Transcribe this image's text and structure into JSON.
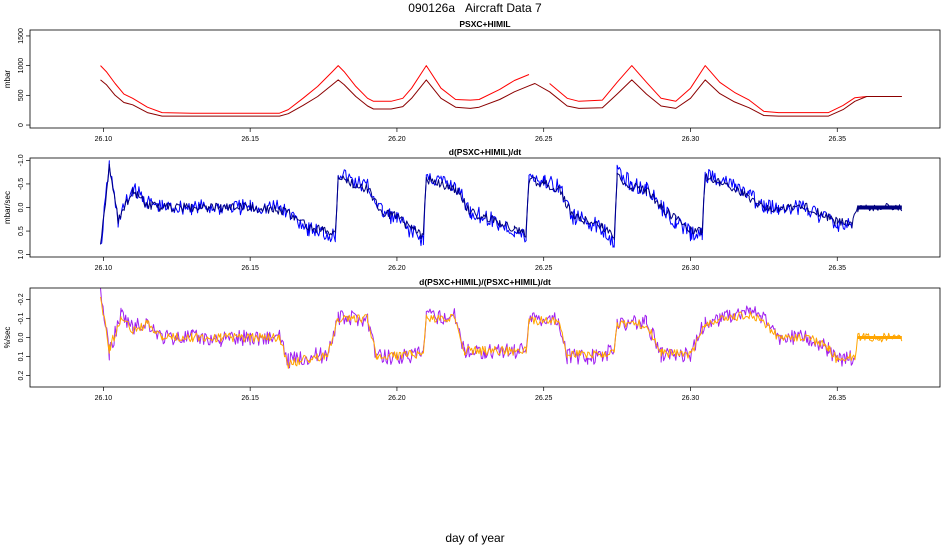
{
  "figure": {
    "title_id": "090126a",
    "title_text": "Aircraft Data 7",
    "xlabel": "day of year"
  },
  "colors": {
    "pressure_a": "#ff0000",
    "pressure_b": "#8b0000",
    "rate_a": "#0000ff",
    "rate_b": "#000080",
    "norm_a": "#a020f0",
    "norm_b": "#ffa500"
  },
  "chart_data": [
    {
      "type": "line",
      "title": "PSXC+HIMIL",
      "ylabel": "mbar",
      "xlim": [
        26.075,
        26.385
      ],
      "ylim": [
        -50,
        1600
      ],
      "y_reversed": false,
      "x_ticks": [
        {
          "v": 26.1,
          "label": "26.10"
        },
        {
          "v": 26.15,
          "label": "26.15"
        },
        {
          "v": 26.2,
          "label": "26.20"
        },
        {
          "v": 26.25,
          "label": "26.25"
        },
        {
          "v": 26.3,
          "label": "26.30"
        },
        {
          "v": 26.35,
          "label": "26.35"
        }
      ],
      "y_ticks": [
        {
          "v": 0,
          "label": "0"
        },
        {
          "v": 500,
          "label": "500"
        },
        {
          "v": 1000,
          "label": "1000"
        },
        {
          "v": 1500,
          "label": "1500"
        }
      ],
      "series": [
        {
          "name": "PSXC+HIMIL (upper)",
          "color": "#ff0000",
          "x": [
            26.099,
            26.101,
            26.104,
            26.107,
            26.11,
            26.115,
            26.12,
            26.13,
            26.14,
            26.15,
            26.16,
            26.163,
            26.168,
            26.173,
            26.178,
            26.18,
            26.182,
            26.186,
            26.19,
            26.192,
            26.198,
            26.202,
            26.205,
            26.21,
            26.215,
            26.22,
            26.225,
            26.228,
            26.235,
            26.24,
            26.245,
            26.247,
            26.252,
            26.258,
            26.262,
            26.27,
            26.275,
            26.28,
            26.285,
            26.29,
            26.295,
            26.3,
            26.305,
            26.31,
            26.315,
            26.32,
            26.325,
            26.33,
            26.34,
            26.347,
            26.352,
            26.356,
            26.36,
            26.372
          ],
          "y": [
            1000,
            900,
            700,
            520,
            450,
            300,
            210,
            200,
            200,
            200,
            200,
            260,
            450,
            650,
            900,
            1000,
            900,
            650,
            450,
            400,
            400,
            450,
            620,
            1000,
            620,
            430,
            420,
            430,
            600,
            750,
            850,
            null,
            700,
            450,
            400,
            420,
            720,
            1000,
            720,
            450,
            400,
            620,
            1000,
            720,
            550,
            420,
            230,
            210,
            210,
            210,
            330,
            460,
            480,
            480
          ]
        },
        {
          "name": "PSXC+HIMIL (lower)",
          "color": "#8b0000",
          "x": [
            26.099,
            26.101,
            26.104,
            26.107,
            26.11,
            26.115,
            26.12,
            26.13,
            26.14,
            26.15,
            26.16,
            26.163,
            26.168,
            26.173,
            26.178,
            26.18,
            26.182,
            26.186,
            26.19,
            26.192,
            26.198,
            26.202,
            26.205,
            26.21,
            26.215,
            26.22,
            26.225,
            26.228,
            26.235,
            26.24,
            26.245,
            26.247,
            26.252,
            26.258,
            26.262,
            26.27,
            26.275,
            26.28,
            26.285,
            26.29,
            26.295,
            26.3,
            26.305,
            26.31,
            26.315,
            26.32,
            26.325,
            26.33,
            26.34,
            26.347,
            26.352,
            26.356,
            26.36,
            26.372
          ],
          "y": [
            760,
            680,
            500,
            380,
            340,
            210,
            150,
            150,
            150,
            150,
            150,
            190,
            330,
            480,
            680,
            760,
            680,
            480,
            320,
            270,
            270,
            310,
            450,
            760,
            450,
            300,
            280,
            300,
            430,
            560,
            660,
            700,
            560,
            320,
            280,
            290,
            520,
            760,
            520,
            320,
            280,
            450,
            760,
            530,
            390,
            290,
            160,
            150,
            150,
            150,
            260,
            400,
            480,
            480
          ]
        }
      ]
    },
    {
      "type": "line",
      "title": "d(PSXC+HIMIL)/dt",
      "ylabel": "mbar/sec",
      "xlim": [
        26.075,
        26.385
      ],
      "ylim": [
        -1.05,
        1.05
      ],
      "y_reversed": true,
      "x_ticks": [
        {
          "v": 26.1,
          "label": "26.10"
        },
        {
          "v": 26.15,
          "label": "26.15"
        },
        {
          "v": 26.2,
          "label": "26.20"
        },
        {
          "v": 26.25,
          "label": "26.25"
        },
        {
          "v": 26.3,
          "label": "26.30"
        },
        {
          "v": 26.35,
          "label": "26.35"
        }
      ],
      "y_ticks": [
        {
          "v": -1.0,
          "label": "-1.0"
        },
        {
          "v": -0.5,
          "label": "-0.5"
        },
        {
          "v": 0.0,
          "label": "0.0"
        },
        {
          "v": 0.5,
          "label": "0.5"
        },
        {
          "v": 1.0,
          "label": "1.0"
        }
      ],
      "series": [
        {
          "name": "d/dt (upper)",
          "color": "#0000ff",
          "x": [
            26.099,
            26.102,
            26.105,
            26.11,
            26.115,
            26.12,
            26.13,
            26.14,
            26.15,
            26.16,
            26.165,
            26.17,
            26.175,
            26.179,
            26.18,
            26.185,
            26.19,
            26.195,
            26.2,
            26.205,
            26.209,
            26.21,
            26.215,
            26.22,
            26.225,
            26.23,
            26.235,
            26.24,
            26.244,
            26.245,
            26.25,
            26.255,
            26.26,
            26.265,
            26.27,
            26.274,
            26.275,
            26.28,
            26.285,
            26.29,
            26.295,
            26.3,
            26.304,
            26.305,
            26.31,
            26.315,
            26.32,
            26.325,
            26.33,
            26.34,
            26.345,
            26.35,
            26.355
          ],
          "y": [
            0.9,
            -0.9,
            0.3,
            -0.4,
            -0.1,
            0.0,
            0.0,
            0.0,
            0.0,
            0.0,
            0.2,
            0.45,
            0.55,
            0.6,
            -0.75,
            -0.55,
            -0.45,
            0.1,
            0.25,
            0.5,
            0.7,
            -0.65,
            -0.55,
            -0.45,
            0.1,
            0.2,
            0.35,
            0.5,
            0.65,
            -0.7,
            -0.55,
            -0.45,
            0.2,
            0.3,
            0.45,
            0.7,
            -0.75,
            -0.5,
            -0.4,
            0.0,
            0.3,
            0.55,
            0.6,
            -0.7,
            -0.6,
            -0.45,
            -0.25,
            0.0,
            0.0,
            0.0,
            0.2,
            0.35,
            0.4
          ]
        },
        {
          "name": "d/dt (smoothed)",
          "color": "#000080",
          "x": [
            26.099,
            26.102,
            26.105,
            26.11,
            26.115,
            26.12,
            26.13,
            26.14,
            26.15,
            26.16,
            26.165,
            26.17,
            26.175,
            26.179,
            26.18,
            26.185,
            26.19,
            26.195,
            26.2,
            26.205,
            26.209,
            26.21,
            26.215,
            26.22,
            26.225,
            26.23,
            26.235,
            26.24,
            26.244,
            26.245,
            26.25,
            26.255,
            26.26,
            26.265,
            26.27,
            26.274,
            26.275,
            26.28,
            26.285,
            26.29,
            26.295,
            26.3,
            26.304,
            26.305,
            26.31,
            26.315,
            26.32,
            26.325,
            26.33,
            26.34,
            26.345,
            26.35,
            26.355,
            26.357,
            26.372
          ],
          "y": [
            0.8,
            -0.85,
            0.25,
            -0.35,
            -0.05,
            0.0,
            0.0,
            0.0,
            0.0,
            0.05,
            0.2,
            0.4,
            0.5,
            0.55,
            -0.65,
            -0.5,
            -0.4,
            0.1,
            0.2,
            0.45,
            0.6,
            -0.6,
            -0.5,
            -0.4,
            0.1,
            0.2,
            0.3,
            0.45,
            0.55,
            -0.6,
            -0.5,
            -0.4,
            0.2,
            0.3,
            0.4,
            0.6,
            -0.65,
            -0.45,
            -0.35,
            0.0,
            0.25,
            0.45,
            0.5,
            -0.65,
            -0.55,
            -0.4,
            -0.2,
            0.0,
            0.0,
            0.0,
            0.15,
            0.3,
            0.35,
            0.0,
            0.0
          ]
        }
      ]
    },
    {
      "type": "line",
      "title": "d(PSXC+HIMIL)/(PSXC+HIMIL)/dt",
      "ylabel": "%/sec",
      "xlim": [
        26.075,
        26.385
      ],
      "ylim": [
        -0.26,
        0.26
      ],
      "y_reversed": true,
      "x_ticks": [
        {
          "v": 26.1,
          "label": "26.10"
        },
        {
          "v": 26.15,
          "label": "26.15"
        },
        {
          "v": 26.2,
          "label": "26.20"
        },
        {
          "v": 26.25,
          "label": "26.25"
        },
        {
          "v": 26.3,
          "label": "26.30"
        },
        {
          "v": 26.35,
          "label": "26.35"
        }
      ],
      "y_ticks": [
        {
          "v": -0.2,
          "label": "-0.2"
        },
        {
          "v": -0.1,
          "label": "-0.1"
        },
        {
          "v": 0.0,
          "label": "0.0"
        },
        {
          "v": 0.1,
          "label": "0.1"
        },
        {
          "v": 0.2,
          "label": "0.2"
        }
      ],
      "series": [
        {
          "name": "normalized rate (raw)",
          "color": "#a020f0",
          "x": [
            26.099,
            26.102,
            26.106,
            26.11,
            26.115,
            26.12,
            26.13,
            26.14,
            26.15,
            26.16,
            26.163,
            26.17,
            26.176,
            26.18,
            26.19,
            26.193,
            26.2,
            26.205,
            26.209,
            26.21,
            26.22,
            26.223,
            26.23,
            26.24,
            26.244,
            26.245,
            26.255,
            26.258,
            26.265,
            26.27,
            26.274,
            26.275,
            26.285,
            26.29,
            26.3,
            26.305,
            26.31,
            26.315,
            26.32,
            26.324,
            26.33,
            26.34,
            26.347,
            26.35,
            26.356
          ],
          "y": [
            -0.25,
            0.08,
            -0.12,
            -0.05,
            -0.08,
            0.0,
            0.0,
            0.01,
            0.0,
            0.0,
            0.12,
            0.1,
            0.09,
            -0.1,
            -0.1,
            0.1,
            0.1,
            0.1,
            0.08,
            -0.11,
            -0.11,
            0.07,
            0.07,
            0.07,
            0.05,
            -0.1,
            -0.1,
            0.1,
            0.1,
            0.1,
            0.06,
            -0.08,
            -0.08,
            0.09,
            0.09,
            -0.08,
            -0.1,
            -0.12,
            -0.14,
            -0.11,
            0.0,
            0.0,
            0.06,
            0.12,
            0.1
          ]
        },
        {
          "name": "normalized rate (smoothed)",
          "color": "#ffa500",
          "x": [
            26.099,
            26.102,
            26.106,
            26.11,
            26.115,
            26.12,
            26.13,
            26.14,
            26.15,
            26.16,
            26.163,
            26.17,
            26.176,
            26.18,
            26.19,
            26.193,
            26.2,
            26.205,
            26.209,
            26.21,
            26.22,
            26.223,
            26.23,
            26.24,
            26.244,
            26.245,
            26.255,
            26.258,
            26.265,
            26.27,
            26.274,
            26.275,
            26.285,
            26.29,
            26.3,
            26.305,
            26.31,
            26.315,
            26.32,
            26.324,
            26.33,
            26.34,
            26.347,
            26.35,
            26.356,
            26.357,
            26.372
          ],
          "y": [
            -0.22,
            0.06,
            -0.1,
            -0.04,
            -0.07,
            0.0,
            0.0,
            0.0,
            0.0,
            0.0,
            0.14,
            0.11,
            0.1,
            -0.1,
            -0.1,
            0.09,
            0.1,
            0.09,
            0.08,
            -0.1,
            -0.1,
            0.07,
            0.07,
            0.07,
            0.06,
            -0.09,
            -0.09,
            0.09,
            0.09,
            0.09,
            0.06,
            -0.07,
            -0.07,
            0.08,
            0.09,
            -0.07,
            -0.09,
            -0.11,
            -0.12,
            -0.1,
            0.0,
            0.0,
            0.05,
            0.12,
            0.1,
            0.0,
            0.0
          ]
        }
      ]
    }
  ]
}
